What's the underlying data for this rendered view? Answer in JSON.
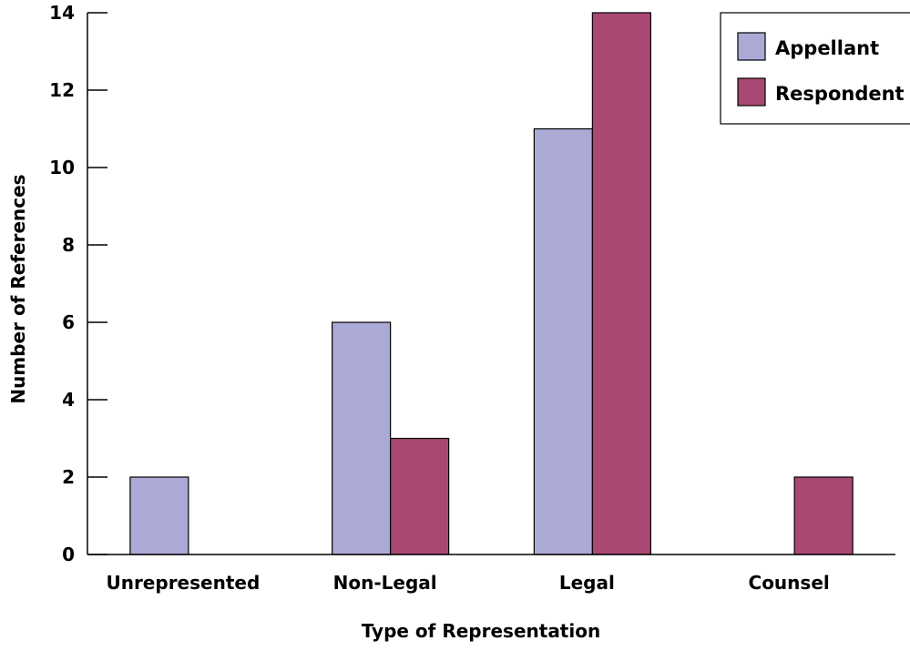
{
  "chart_data": {
    "type": "bar",
    "title": "",
    "xlabel": "Type of Representation",
    "ylabel": "Number of References",
    "categories": [
      "Unrepresented",
      "Non-Legal",
      "Legal",
      "Counsel"
    ],
    "series": [
      {
        "name": "Appellant",
        "values": [
          2,
          6,
          11,
          0
        ],
        "color": "#abaad6"
      },
      {
        "name": "Respondent",
        "values": [
          0,
          3,
          14,
          2
        ],
        "color": "#a84873"
      }
    ],
    "ylim": [
      0,
      14
    ],
    "yticks": [
      0,
      2,
      4,
      6,
      8,
      10,
      12,
      14
    ],
    "grid": false,
    "legend_position": "top-right"
  }
}
